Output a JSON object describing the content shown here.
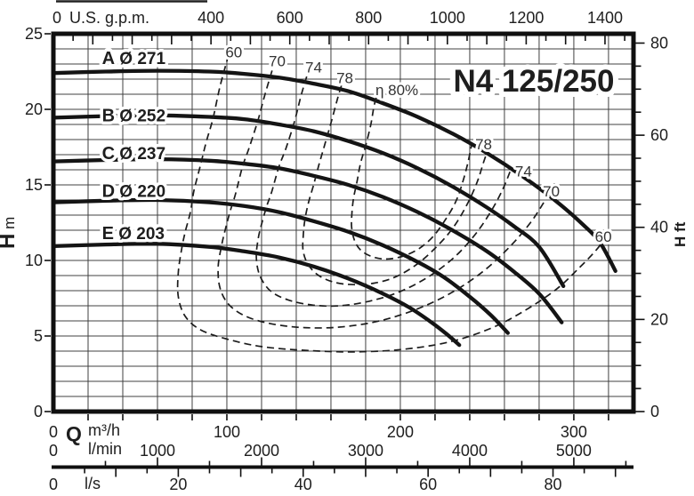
{
  "title": "N4 125/250",
  "chart_data": {
    "type": "line",
    "title": "N4 125/250",
    "grid": {
      "step_m3h": 20,
      "step_m": 1
    },
    "axes": {
      "x_top_gpm": {
        "unit": "U.S. g.p.m.",
        "tick_labels": [
          0,
          400,
          600,
          800,
          1000,
          1200,
          1400
        ],
        "minor_step": 50,
        "major_step": 100,
        "tick_max": 1450,
        "m3h_per_unit": 0.22712
      },
      "x_bottom_m3h": {
        "prefix": "Q",
        "unit": "m³/h",
        "tick_labels": [
          0,
          100,
          200,
          300
        ],
        "max": 334.4
      },
      "x_bottom_lmin": {
        "unit": "l/min",
        "tick_labels": [
          0,
          1000,
          2000,
          3000,
          4000,
          5000
        ],
        "minor_step": 500,
        "major_step": 1000,
        "tick_max": 5500,
        "m3h_per_unit": 0.06
      },
      "x_bottom_ls": {
        "unit": "l/s",
        "tick_labels": [
          0,
          20,
          40,
          60,
          80
        ],
        "minor_step": 5,
        "major_step": 10,
        "tick_max": 90,
        "m3h_per_unit": 3.6
      },
      "y_left_m": {
        "label": "H",
        "unit": "m",
        "tick_labels": [
          0,
          5,
          10,
          15,
          20,
          25
        ],
        "max": 25
      },
      "y_right_ft": {
        "label": "H",
        "unit": "ft",
        "tick_labels": [
          0,
          20,
          40,
          60,
          80
        ],
        "minor_step": 5,
        "major_step": 20,
        "tick_max": 80,
        "m_per_unit": 0.3048
      }
    },
    "head_curves": [
      {
        "id": "A",
        "letter": "A",
        "diameter": "Ø 271",
        "label_q": 28,
        "label_h": 23.0,
        "points": [
          [
            0,
            22.4
          ],
          [
            30,
            22.5
          ],
          [
            60,
            22.55
          ],
          [
            90,
            22.5
          ],
          [
            110,
            22.35
          ],
          [
            130,
            22.1
          ],
          [
            150,
            21.7
          ],
          [
            170,
            21.2
          ],
          [
            190,
            20.4
          ],
          [
            210,
            19.5
          ],
          [
            230,
            18.4
          ],
          [
            250,
            17.1
          ],
          [
            270,
            15.6
          ],
          [
            290,
            13.9
          ],
          [
            305,
            12.4
          ],
          [
            315,
            11.2
          ],
          [
            324,
            9.3
          ]
        ]
      },
      {
        "id": "B",
        "letter": "B",
        "diameter": "Ø 252",
        "label_q": 28,
        "label_h": 19.2,
        "points": [
          [
            0,
            19.45
          ],
          [
            30,
            19.55
          ],
          [
            60,
            19.6
          ],
          [
            90,
            19.5
          ],
          [
            110,
            19.35
          ],
          [
            130,
            19.0
          ],
          [
            150,
            18.55
          ],
          [
            170,
            17.9
          ],
          [
            190,
            17.1
          ],
          [
            210,
            16.1
          ],
          [
            230,
            14.9
          ],
          [
            250,
            13.5
          ],
          [
            265,
            12.3
          ],
          [
            280,
            10.9
          ],
          [
            294,
            8.3
          ]
        ]
      },
      {
        "id": "C",
        "letter": "C",
        "diameter": "Ø 237",
        "label_q": 28,
        "label_h": 16.7,
        "points": [
          [
            0,
            16.55
          ],
          [
            30,
            16.65
          ],
          [
            60,
            16.7
          ],
          [
            90,
            16.6
          ],
          [
            110,
            16.4
          ],
          [
            130,
            16.1
          ],
          [
            150,
            15.6
          ],
          [
            170,
            15.0
          ],
          [
            190,
            14.2
          ],
          [
            210,
            13.2
          ],
          [
            230,
            12.0
          ],
          [
            250,
            10.6
          ],
          [
            265,
            9.3
          ],
          [
            280,
            7.8
          ],
          [
            293,
            5.9
          ]
        ]
      },
      {
        "id": "D",
        "letter": "D",
        "diameter": "Ø 220",
        "label_q": 28,
        "label_h": 14.2,
        "points": [
          [
            0,
            13.85
          ],
          [
            30,
            13.95
          ],
          [
            60,
            14.0
          ],
          [
            90,
            13.85
          ],
          [
            110,
            13.6
          ],
          [
            130,
            13.2
          ],
          [
            150,
            12.6
          ],
          [
            170,
            11.9
          ],
          [
            190,
            11.0
          ],
          [
            210,
            9.9
          ],
          [
            225,
            8.9
          ],
          [
            240,
            7.6
          ],
          [
            252,
            6.4
          ],
          [
            262,
            5.2
          ]
        ]
      },
      {
        "id": "E",
        "letter": "E",
        "diameter": "Ø 203",
        "label_q": 28,
        "label_h": 11.4,
        "points": [
          [
            0,
            10.95
          ],
          [
            30,
            11.05
          ],
          [
            60,
            11.1
          ],
          [
            90,
            10.9
          ],
          [
            110,
            10.6
          ],
          [
            130,
            10.2
          ],
          [
            150,
            9.6
          ],
          [
            170,
            8.8
          ],
          [
            190,
            7.8
          ],
          [
            205,
            6.9
          ],
          [
            218,
            5.9
          ],
          [
            227,
            5.1
          ],
          [
            234,
            4.4
          ]
        ]
      }
    ],
    "efficiency_curves": [
      {
        "value": 60,
        "points": [
          [
            101,
            23.6
          ],
          [
            96,
            21.5
          ],
          [
            92,
            19.4
          ],
          [
            88,
            17.8
          ],
          [
            85,
            16.4
          ],
          [
            81,
            14.6
          ],
          [
            79,
            13.2
          ],
          [
            76,
            11.9
          ],
          [
            74,
            10.8
          ],
          [
            72,
            9.2
          ],
          [
            72,
            7.6
          ],
          [
            76,
            6.3
          ],
          [
            85,
            5.4
          ],
          [
            100,
            4.8
          ],
          [
            120,
            4.3
          ],
          [
            145,
            4.05
          ],
          [
            172,
            3.95
          ],
          [
            200,
            4.1
          ],
          [
            228,
            4.6
          ],
          [
            252,
            5.5
          ],
          [
            272,
            6.7
          ],
          [
            290,
            8.1
          ],
          [
            303,
            9.5
          ],
          [
            313,
            10.7
          ],
          [
            321,
            11.9
          ]
        ]
      },
      {
        "value": 70,
        "points": [
          [
            128,
            23.3
          ],
          [
            122,
            21.0
          ],
          [
            118,
            19.3
          ],
          [
            113,
            17.5
          ],
          [
            109,
            16.2
          ],
          [
            105,
            14.4
          ],
          [
            102,
            13.3
          ],
          [
            99,
            12.0
          ],
          [
            97,
            11.0
          ],
          [
            95,
            9.6
          ],
          [
            96,
            8.2
          ],
          [
            101,
            7.1
          ],
          [
            111,
            6.3
          ],
          [
            126,
            5.8
          ],
          [
            145,
            5.55
          ],
          [
            166,
            5.6
          ],
          [
            188,
            6.0
          ],
          [
            210,
            6.8
          ],
          [
            230,
            7.9
          ],
          [
            248,
            9.3
          ],
          [
            263,
            10.9
          ],
          [
            275,
            12.5
          ],
          [
            283,
            13.9
          ],
          [
            289,
            15.1
          ]
        ]
      },
      {
        "value": 74,
        "points": [
          [
            148,
            22.9
          ],
          [
            143,
            21.0
          ],
          [
            139,
            19.2
          ],
          [
            134,
            17.4
          ],
          [
            130,
            16.2
          ],
          [
            126,
            14.6
          ],
          [
            123,
            13.6
          ],
          [
            120,
            12.4
          ],
          [
            118,
            11.4
          ],
          [
            117,
            10.2
          ],
          [
            119,
            9.0
          ],
          [
            125,
            8.0
          ],
          [
            135,
            7.4
          ],
          [
            149,
            7.05
          ],
          [
            165,
            7.0
          ],
          [
            182,
            7.3
          ],
          [
            199,
            7.9
          ],
          [
            216,
            8.9
          ],
          [
            231,
            10.2
          ],
          [
            243,
            11.7
          ],
          [
            252,
            13.2
          ],
          [
            259,
            14.7
          ],
          [
            264,
            16.1
          ]
        ]
      },
      {
        "value": 78,
        "points": [
          [
            168,
            22.3
          ],
          [
            164,
            20.8
          ],
          [
            160,
            19.1
          ],
          [
            156,
            17.5
          ],
          [
            153,
            16.3
          ],
          [
            150,
            15.0
          ],
          [
            147,
            13.8
          ],
          [
            145,
            12.7
          ],
          [
            144,
            11.6
          ],
          [
            144,
            10.6
          ],
          [
            147,
            9.7
          ],
          [
            153,
            9.0
          ],
          [
            162,
            8.55
          ],
          [
            173,
            8.4
          ],
          [
            185,
            8.5
          ],
          [
            197,
            8.9
          ],
          [
            209,
            9.7
          ],
          [
            220,
            10.8
          ],
          [
            230,
            12.1
          ],
          [
            238,
            13.6
          ],
          [
            244,
            15.1
          ],
          [
            248,
            16.5
          ],
          [
            251,
            17.5
          ]
        ]
      },
      {
        "value": 80,
        "points": [
          [
            188,
            21.5
          ],
          [
            185,
            20.3
          ],
          [
            183,
            19.0
          ],
          [
            180,
            17.6
          ],
          [
            177,
            16.4
          ],
          [
            175,
            15.2
          ],
          [
            173,
            14.1
          ],
          [
            172,
            13.0
          ],
          [
            172,
            12.1
          ],
          [
            174,
            11.2
          ],
          [
            178,
            10.6
          ],
          [
            185,
            10.2
          ],
          [
            193,
            10.1
          ],
          [
            202,
            10.3
          ],
          [
            211,
            10.8
          ],
          [
            219,
            11.6
          ],
          [
            226,
            12.7
          ],
          [
            232,
            13.9
          ],
          [
            236,
            15.2
          ],
          [
            239,
            16.5
          ],
          [
            241,
            17.6
          ]
        ]
      }
    ],
    "efficiency_labels": [
      {
        "text": "60",
        "q": 104,
        "h": 23.8
      },
      {
        "text": "70",
        "q": 129,
        "h": 23.2
      },
      {
        "text": "74",
        "q": 150,
        "h": 22.8
      },
      {
        "text": "78",
        "q": 168,
        "h": 22.1
      },
      {
        "text": "η 80%",
        "q": 198,
        "h": 21.3
      },
      {
        "text": "78",
        "q": 248,
        "h": 17.7
      },
      {
        "text": "74",
        "q": 271,
        "h": 15.9
      },
      {
        "text": "70",
        "q": 287,
        "h": 14.6
      },
      {
        "text": "60",
        "q": 317,
        "h": 11.6
      }
    ],
    "colors": {
      "background": "#ffffff",
      "curve": "#141414",
      "dashed": "#1c1c1c",
      "grid": "#404040",
      "border": "#101010",
      "text": "#1e1e1e",
      "efficiency_text": "#333333"
    }
  }
}
